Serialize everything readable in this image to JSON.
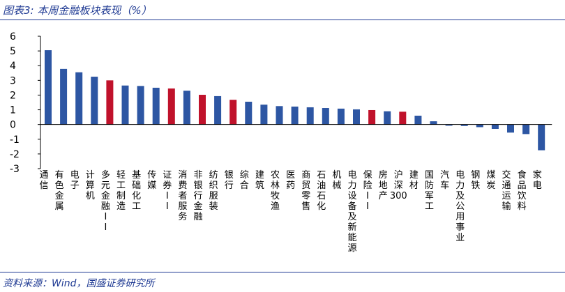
{
  "header": {
    "title": "图表3: 本周金融板块表现（%）"
  },
  "footer": {
    "source": "资料来源：Wind，国盛证券研究所"
  },
  "colors": {
    "blue": "#2d56a3",
    "red": "#c0122b",
    "rule": "#1f3a93"
  },
  "chart_data": {
    "type": "bar",
    "title": "本周金融板块表现（%）",
    "ylim": [
      -3,
      6
    ],
    "yticks": [
      6,
      5,
      4,
      3,
      2,
      1,
      0,
      -1,
      -2,
      -3
    ],
    "grid": false,
    "legend": "none",
    "categories": [
      "通信",
      "有色金属",
      "电子",
      "计算机",
      "多元金融II",
      "轻工制造",
      "基础化工",
      "传媒",
      "证券II",
      "消费者服务",
      "非银行金融",
      "纺织服装",
      "银行",
      "综合",
      "建筑",
      "农林牧渔",
      "医药",
      "商贸零售",
      "石油石化",
      "机械",
      "电力设备及新能源",
      "保险II",
      "房地产",
      "沪深300",
      "建材",
      "国防军工",
      "汽车",
      "电力及公用事业",
      "钢铁",
      "煤炭",
      "交通运输",
      "食品饮料",
      "家电"
    ],
    "values": [
      5.05,
      3.78,
      3.55,
      3.25,
      3.0,
      2.65,
      2.62,
      2.5,
      2.45,
      2.3,
      2.02,
      1.93,
      1.68,
      1.55,
      1.35,
      1.25,
      1.22,
      1.17,
      1.12,
      1.08,
      1.03,
      0.98,
      0.9,
      0.87,
      0.6,
      0.22,
      -0.08,
      -0.1,
      -0.18,
      -0.3,
      -0.55,
      -0.65,
      -1.75
    ],
    "highlight": [
      "多元金融II",
      "证券II",
      "非银行金融",
      "银行",
      "保险II",
      "沪深300"
    ]
  }
}
